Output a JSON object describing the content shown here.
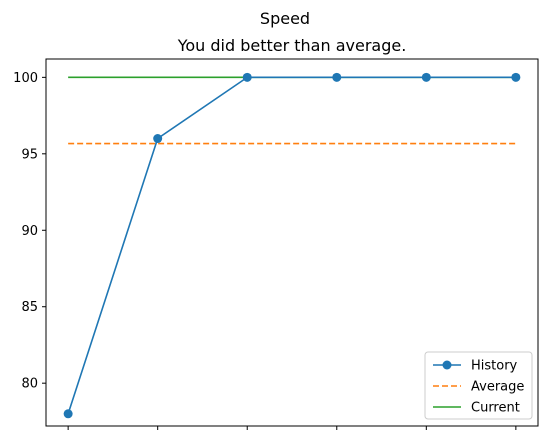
{
  "chart_data": {
    "type": "line",
    "suptitle": "Speed",
    "title": "You did better than average.",
    "xlabel": "",
    "ylabel": "",
    "x": [
      0,
      1,
      2,
      3,
      4,
      5
    ],
    "x_tick_labels": [
      "",
      "",
      "",
      "",
      "",
      ""
    ],
    "ylim": [
      77.2,
      101.2
    ],
    "yticks": [
      80,
      85,
      90,
      95,
      100
    ],
    "series": [
      {
        "name": "History",
        "style": "solid-markers",
        "color": "#1f77b4",
        "values": [
          78,
          96,
          100,
          100,
          100,
          100
        ]
      },
      {
        "name": "Average",
        "style": "dashed",
        "color": "#ff7f0e",
        "values": [
          95.67,
          95.67,
          95.67,
          95.67,
          95.67,
          95.67
        ]
      },
      {
        "name": "Current",
        "style": "solid",
        "color": "#2ca02c",
        "values": [
          100,
          100,
          100,
          100,
          100,
          100
        ]
      }
    ],
    "grid": false,
    "legend_position": "lower-right"
  }
}
